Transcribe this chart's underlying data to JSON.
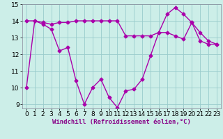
{
  "line1_x": [
    0,
    1,
    2,
    3,
    4,
    5,
    6,
    7,
    8,
    9,
    10,
    11,
    12,
    13,
    14,
    15,
    16,
    17,
    18,
    19,
    20,
    21,
    22,
    23
  ],
  "line1_y": [
    10.0,
    14.0,
    13.8,
    13.5,
    12.2,
    12.4,
    10.4,
    9.0,
    10.0,
    10.5,
    9.4,
    8.8,
    9.8,
    9.9,
    10.5,
    11.9,
    13.3,
    14.4,
    14.8,
    14.4,
    13.9,
    13.3,
    12.8,
    12.6
  ],
  "line2_x": [
    0,
    1,
    2,
    3,
    4,
    5,
    6,
    7,
    8,
    9,
    10,
    11,
    12,
    13,
    14,
    15,
    16,
    17,
    18,
    19,
    20,
    21,
    22,
    23
  ],
  "line2_y": [
    14.0,
    14.0,
    13.9,
    13.8,
    13.9,
    13.9,
    14.0,
    14.0,
    14.0,
    14.0,
    14.0,
    14.0,
    13.1,
    13.1,
    13.1,
    13.1,
    13.3,
    13.3,
    13.1,
    12.9,
    13.9,
    12.8,
    12.6,
    12.6
  ],
  "line_color": "#aa00aa",
  "marker": "D",
  "markersize": 2.5,
  "xlim_min": -0.5,
  "xlim_max": 23.5,
  "ylim_min": 8.75,
  "ylim_max": 15.0,
  "yticks": [
    9,
    10,
    11,
    12,
    13,
    14,
    15
  ],
  "xticks": [
    0,
    1,
    2,
    3,
    4,
    5,
    6,
    7,
    8,
    9,
    10,
    11,
    12,
    13,
    14,
    15,
    16,
    17,
    18,
    19,
    20,
    21,
    22,
    23
  ],
  "bg_color": "#cceee8",
  "grid_color": "#99cccc",
  "xlabel": "Windchill (Refroidissement éolien,°C)",
  "xlabel_fontsize": 6.5,
  "tick_fontsize": 6.5,
  "linewidth": 1.0
}
